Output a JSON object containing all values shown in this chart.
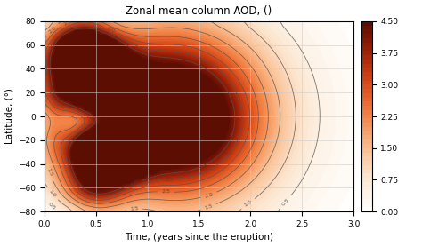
{
  "title": "Zonal mean column AOD, ()",
  "xlabel": "Time, (years since the eruption)",
  "ylabel": "Latitude, (°)",
  "xlim": [
    0.0,
    3.0
  ],
  "ylim": [
    -80,
    80
  ],
  "xticks": [
    0.0,
    0.5,
    1.0,
    1.5,
    2.0,
    2.5,
    3.0
  ],
  "yticks": [
    -80,
    -60,
    -40,
    -20,
    0,
    20,
    40,
    60,
    80
  ],
  "colorbar_ticks": [
    0.0,
    0.75,
    1.5,
    2.25,
    3.0,
    3.75,
    4.5
  ],
  "vmin": 0.0,
  "vmax": 4.5,
  "contour_levels": [
    0.5,
    1.0,
    1.5,
    2.0,
    2.5,
    3.0,
    3.5,
    4.0,
    4.5
  ],
  "background_color": "#ffffff"
}
